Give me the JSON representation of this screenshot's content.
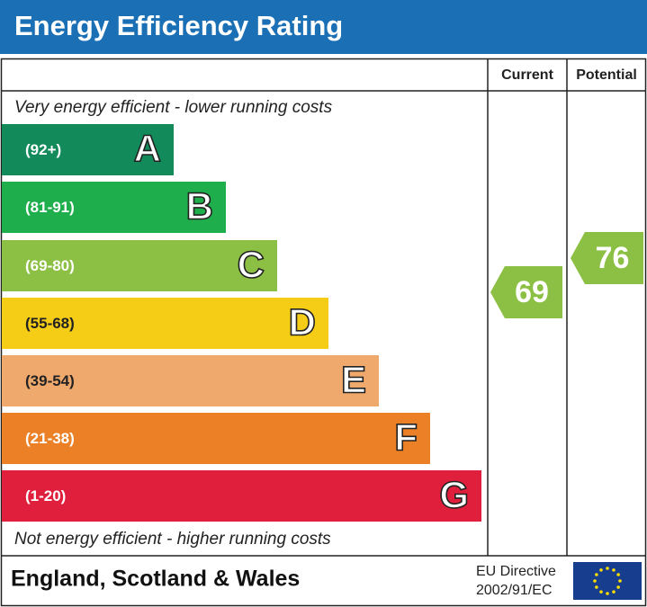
{
  "header": {
    "title": "Energy Efficiency Rating"
  },
  "columns": {
    "current": "Current",
    "potential": "Potential"
  },
  "top_note": "Very energy efficient - lower running costs",
  "bottom_note": "Not energy efficient - higher running costs",
  "bands": [
    {
      "range": "(92+)",
      "letter": "A",
      "color": "#138a5a"
    },
    {
      "range": "(81-91)",
      "letter": "B",
      "color": "#1fae4c"
    },
    {
      "range": "(69-80)",
      "letter": "C",
      "color": "#8cc044"
    },
    {
      "range": "(55-68)",
      "letter": "D",
      "color": "#f5cc16"
    },
    {
      "range": "(39-54)",
      "letter": "E",
      "color": "#f0a96c"
    },
    {
      "range": "(21-38)",
      "letter": "F",
      "color": "#ec8026"
    },
    {
      "range": "(1-20)",
      "letter": "G",
      "color": "#e01f3d"
    }
  ],
  "ratings": {
    "current": 69,
    "potential": 76,
    "color": "#8cc044"
  },
  "footer": {
    "region": "England, Scotland & Wales",
    "directive_line1": "EU Directive",
    "directive_line2": "2002/91/EC"
  }
}
